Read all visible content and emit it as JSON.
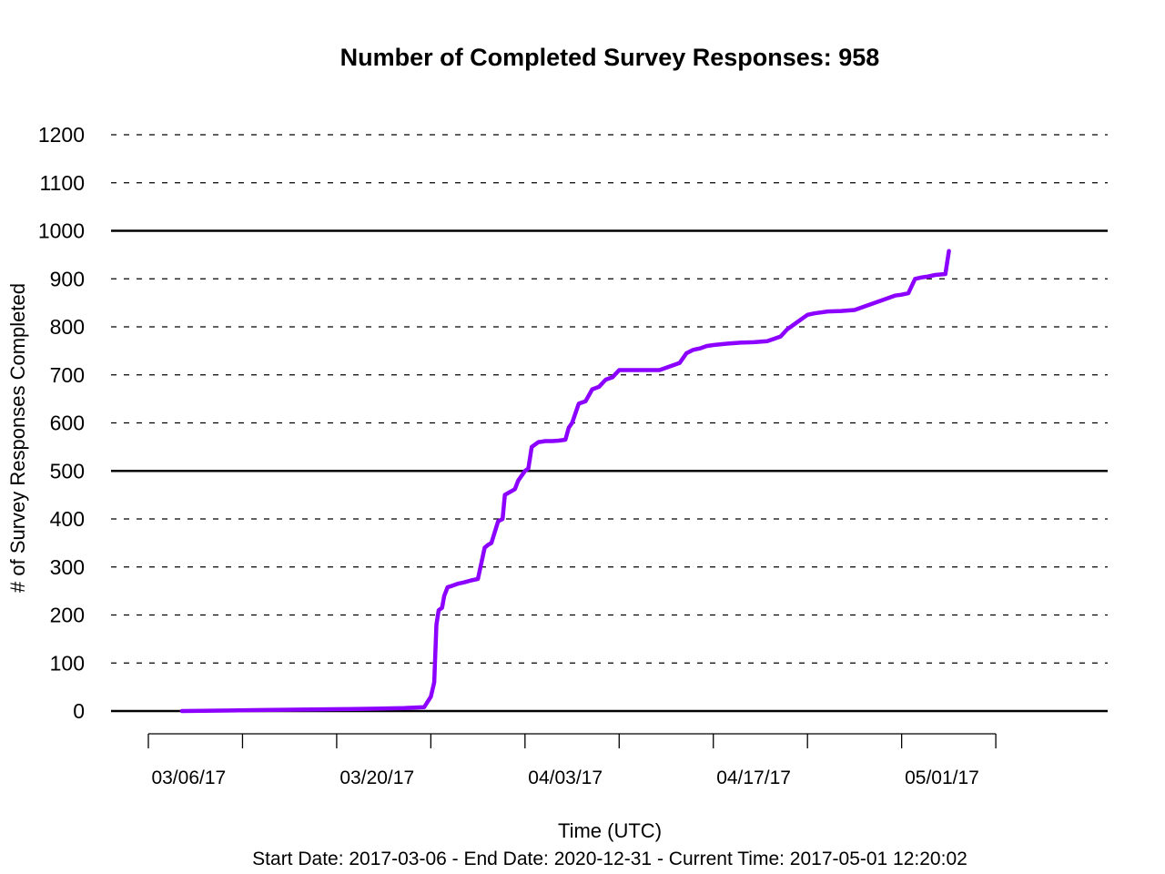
{
  "chart_data": {
    "type": "line",
    "title": "Number of Completed Survey Responses: 958",
    "xlabel": "Time (UTC)",
    "ylabel": "# of Survey Responses Completed",
    "subtitle": "Start Date: 2017-03-06 - End Date: 2020-12-31 - Current Time: 2017-05-01 12:20:02",
    "ylim": [
      0,
      1200
    ],
    "yticks": [
      "0",
      "100",
      "200",
      "300",
      "400",
      "500",
      "600",
      "700",
      "800",
      "900",
      "1000",
      "1100",
      "1200"
    ],
    "ytick_values": [
      0,
      100,
      200,
      300,
      400,
      500,
      600,
      700,
      800,
      900,
      1000,
      1100,
      1200
    ],
    "xlim": [
      "2017-03-03",
      "2017-05-10"
    ],
    "x_axis_ticks": [
      "2017-03-03",
      "2017-03-10",
      "2017-03-17",
      "2017-03-24",
      "2017-03-31",
      "2017-04-07",
      "2017-04-14",
      "2017-04-21",
      "2017-04-28",
      "2017-05-05"
    ],
    "xtick_labels": [
      {
        "date": "2017-03-06",
        "label": "03/06/17"
      },
      {
        "date": "2017-03-20",
        "label": "03/20/17"
      },
      {
        "date": "2017-04-03",
        "label": "04/03/17"
      },
      {
        "date": "2017-04-17",
        "label": "04/17/17"
      },
      {
        "date": "2017-05-01",
        "label": "05/01/17"
      }
    ],
    "grid": "dashed horizontal",
    "reference_lines": [
      500,
      1000
    ],
    "line_color": "#8b00ff",
    "series": [
      {
        "x": [
          "2017-03-05 12:00",
          "2017-03-08 12:00",
          "2017-03-11 12:00",
          "2017-03-14 12:00",
          "2017-03-17 12:00",
          "2017-03-20 00:00",
          "2017-03-22 00:00",
          "2017-03-23 12:00",
          "2017-03-24 00:00",
          "2017-03-24 06:00",
          "2017-03-24 10:00",
          "2017-03-24 14:00",
          "2017-03-24 20:00",
          "2017-03-25 00:00",
          "2017-03-25 06:00",
          "2017-03-25 12:00",
          "2017-03-26 00:00",
          "2017-03-26 12:00",
          "2017-03-27 00:00",
          "2017-03-27 12:00",
          "2017-03-28 00:00",
          "2017-03-28 06:00",
          "2017-03-28 12:00",
          "2017-03-29 00:00",
          "2017-03-29 08:00",
          "2017-03-29 12:00",
          "2017-03-30 00:00",
          "2017-03-30 06:00",
          "2017-03-30 12:00",
          "2017-03-31 00:00",
          "2017-03-31 06:00",
          "2017-03-31 12:00",
          "2017-04-01 00:00",
          "2017-04-01 06:00",
          "2017-04-01 12:00",
          "2017-04-02 00:00",
          "2017-04-02 12:00",
          "2017-04-03 00:00",
          "2017-04-03 06:00",
          "2017-04-03 12:00",
          "2017-04-04 00:00",
          "2017-04-04 12:00",
          "2017-04-05 00:00",
          "2017-04-05 12:00",
          "2017-04-06 00:00",
          "2017-04-06 12:00",
          "2017-04-07 00:00",
          "2017-04-07 12:00",
          "2017-04-08 06:00",
          "2017-04-09 00:00",
          "2017-04-10 00:00",
          "2017-04-11 00:00",
          "2017-04-11 12:00",
          "2017-04-12 00:00",
          "2017-04-12 12:00",
          "2017-04-13 00:00",
          "2017-04-13 12:00",
          "2017-04-14 00:00",
          "2017-04-15 00:00",
          "2017-04-16 00:00",
          "2017-04-17 00:00",
          "2017-04-18 00:00",
          "2017-04-18 12:00",
          "2017-04-19 00:00",
          "2017-04-19 12:00",
          "2017-04-20 00:00",
          "2017-04-20 12:00",
          "2017-04-21 00:00",
          "2017-04-21 12:00",
          "2017-04-22 00:00",
          "2017-04-22 12:00",
          "2017-04-23 12:00",
          "2017-04-24 12:00",
          "2017-04-25 00:00",
          "2017-04-25 12:00",
          "2017-04-26 00:00",
          "2017-04-26 12:00",
          "2017-04-27 00:00",
          "2017-04-27 12:00",
          "2017-04-28 00:00",
          "2017-04-28 12:00",
          "2017-04-29 00:00",
          "2017-04-29 12:00",
          "2017-04-30 00:00",
          "2017-04-30 12:00",
          "2017-05-01 06:00",
          "2017-05-01 12:20"
        ],
        "y": [
          0,
          1,
          2,
          3,
          4,
          5,
          6,
          8,
          30,
          60,
          180,
          210,
          215,
          240,
          258,
          260,
          265,
          268,
          272,
          275,
          340,
          346,
          350,
          395,
          400,
          450,
          458,
          462,
          480,
          500,
          505,
          550,
          560,
          561,
          562,
          562,
          563,
          565,
          590,
          600,
          640,
          645,
          670,
          675,
          690,
          695,
          710,
          710,
          710,
          710,
          710,
          720,
          725,
          745,
          752,
          755,
          760,
          762,
          765,
          767,
          768,
          770,
          775,
          780,
          795,
          805,
          815,
          825,
          828,
          830,
          832,
          833,
          835,
          840,
          845,
          850,
          855,
          860,
          865,
          867,
          870,
          900,
          903,
          905,
          908,
          910,
          958
        ]
      }
    ]
  }
}
